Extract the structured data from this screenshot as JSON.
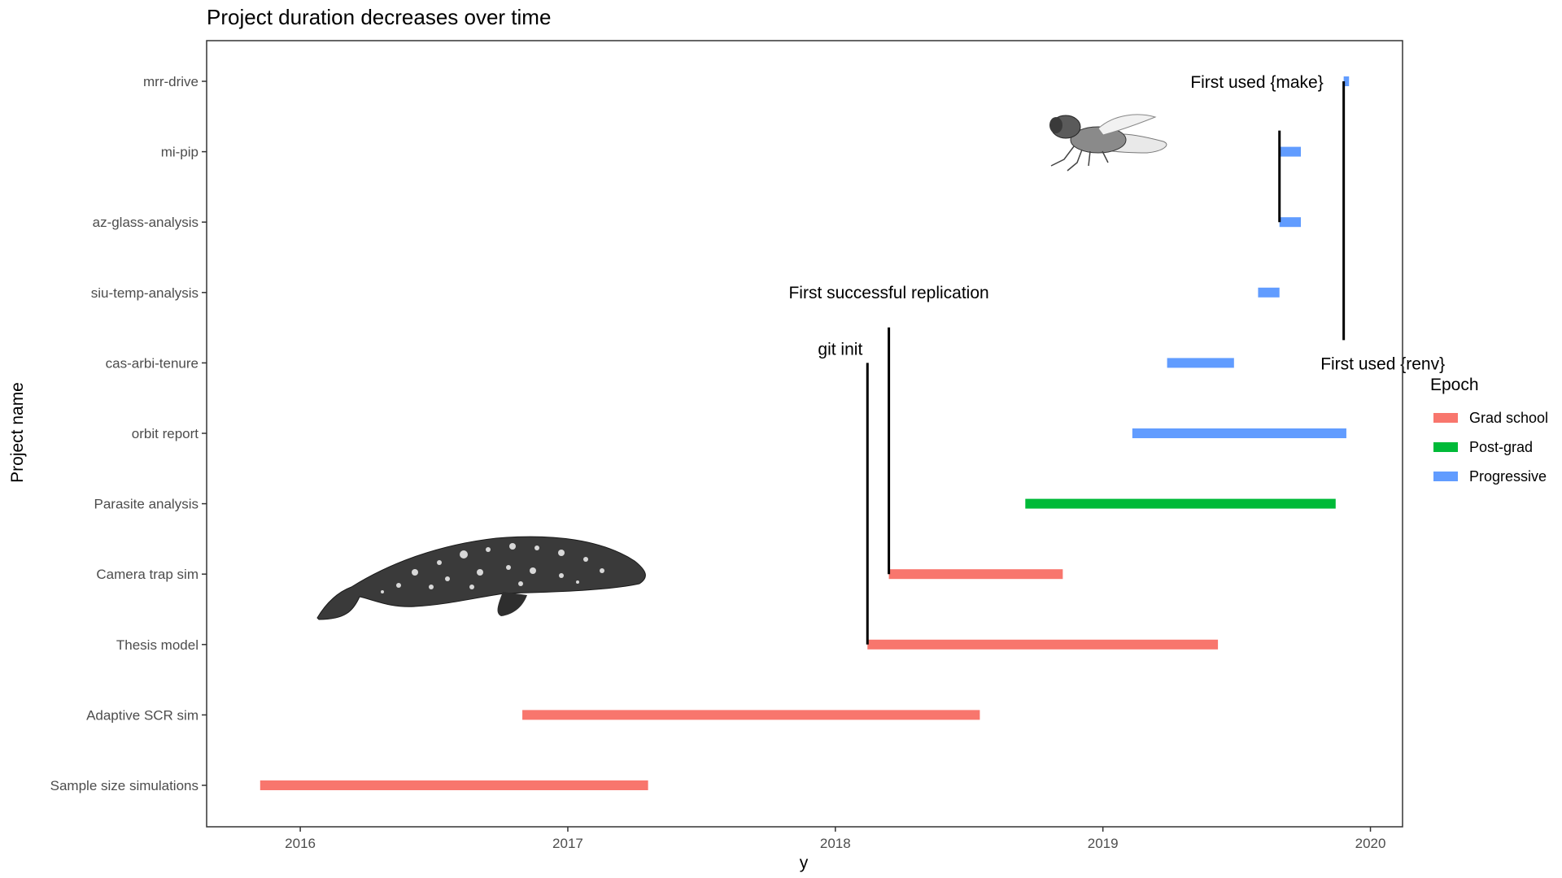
{
  "chart_data": {
    "type": "gantt",
    "title": "Project duration decreases over time",
    "xlabel": "y",
    "ylabel": "Project name",
    "xlim": [
      2015.65,
      2020.12
    ],
    "x_ticks": [
      2016,
      2017,
      2018,
      2019,
      2020
    ],
    "x_tick_labels": [
      "2016",
      "2017",
      "2018",
      "2019",
      "2020"
    ],
    "grid": false,
    "legend": {
      "title": "Epoch",
      "position": "right",
      "entries": [
        {
          "name": "Grad school",
          "color": "#F8766D"
        },
        {
          "name": "Post-grad",
          "color": "#00BA38"
        },
        {
          "name": "Progressive",
          "color": "#619CFF"
        }
      ]
    },
    "categories": [
      "mrr-drive",
      "mi-pip",
      "az-glass-analysis",
      "siu-temp-analysis",
      "cas-arbi-tenure",
      "orbit report",
      "Parasite analysis",
      "Camera trap sim",
      "Thesis model",
      "Adaptive SCR sim",
      "Sample size simulations"
    ],
    "bars": [
      {
        "project": "mrr-drive",
        "start": 2019.9,
        "end": 2019.92,
        "epoch": "Progressive"
      },
      {
        "project": "mi-pip",
        "start": 2019.66,
        "end": 2019.74,
        "epoch": "Progressive"
      },
      {
        "project": "az-glass-analysis",
        "start": 2019.66,
        "end": 2019.74,
        "epoch": "Progressive"
      },
      {
        "project": "siu-temp-analysis",
        "start": 2019.58,
        "end": 2019.66,
        "epoch": "Progressive"
      },
      {
        "project": "cas-arbi-tenure",
        "start": 2019.24,
        "end": 2019.49,
        "epoch": "Progressive"
      },
      {
        "project": "orbit report",
        "start": 2019.11,
        "end": 2019.91,
        "epoch": "Progressive"
      },
      {
        "project": "Parasite analysis",
        "start": 2018.71,
        "end": 2019.87,
        "epoch": "Post-grad"
      },
      {
        "project": "Camera trap sim",
        "start": 2018.2,
        "end": 2018.85,
        "epoch": "Grad school"
      },
      {
        "project": "Thesis model",
        "start": 2018.12,
        "end": 2019.43,
        "epoch": "Grad school"
      },
      {
        "project": "Adaptive SCR sim",
        "start": 2016.83,
        "end": 2018.54,
        "epoch": "Grad school"
      },
      {
        "project": "Sample size simulations",
        "start": 2015.85,
        "end": 2017.3,
        "epoch": "Grad school"
      }
    ],
    "annotations": [
      {
        "label": "git init",
        "x": 2018.12,
        "y_from": "Thesis model",
        "y_to": "cas-arbi-tenure"
      },
      {
        "label": "First successful replication",
        "x": 2018.2,
        "y_from": "Camera trap sim",
        "y_to": "siu-temp-analysis"
      },
      {
        "label": "First used {make}",
        "x": 2019.66,
        "y_from": "az-glass-analysis",
        "y_to": "mrr-drive"
      },
      {
        "label": "First used {renv}",
        "x": 2019.9,
        "y_from": "cas-arbi-tenure",
        "y_to": "mrr-drive"
      }
    ],
    "images": [
      {
        "name": "whale-image"
      },
      {
        "name": "fly-image"
      }
    ]
  }
}
